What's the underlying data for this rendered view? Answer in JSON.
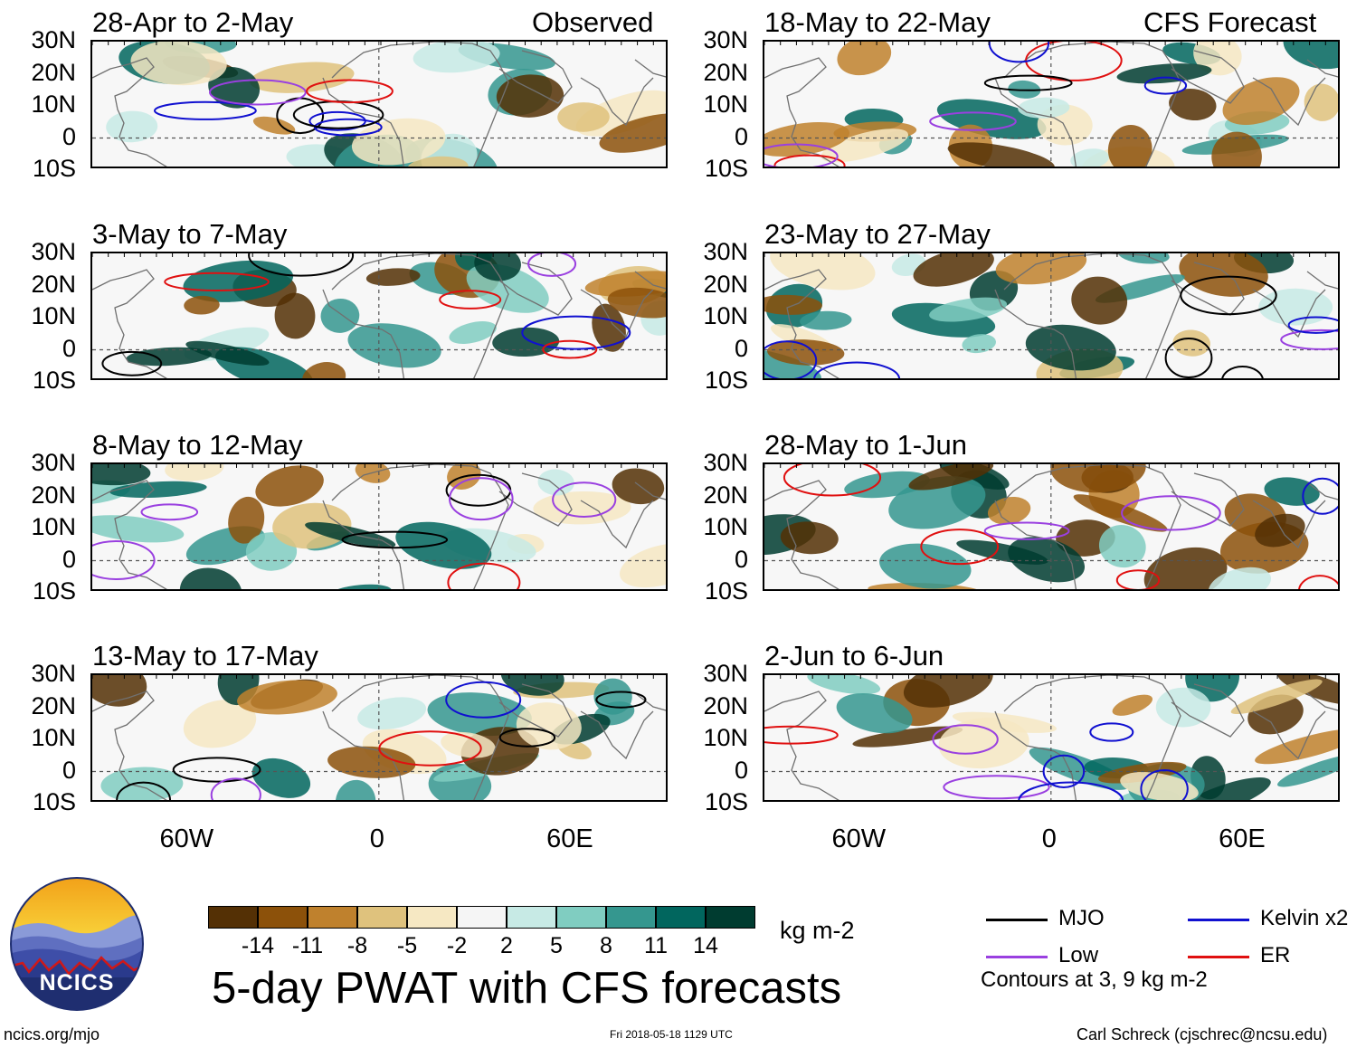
{
  "headers": {
    "observed": "Observed",
    "forecast": "CFS Forecast"
  },
  "lat_labels": [
    "30N",
    "20N",
    "10N",
    "0",
    "10S"
  ],
  "lon_labels": [
    "60W",
    "0",
    "60E"
  ],
  "panels": [
    {
      "title": "28-Apr to 2-May",
      "column": "observed"
    },
    {
      "title": "3-May to 7-May",
      "column": "observed"
    },
    {
      "title": "8-May to 12-May",
      "column": "observed"
    },
    {
      "title": "13-May to 17-May",
      "column": "observed"
    },
    {
      "title": "18-May to 22-May",
      "column": "forecast"
    },
    {
      "title": "23-May to 27-May",
      "column": "forecast"
    },
    {
      "title": "28-May to 1-Jun",
      "column": "forecast"
    },
    {
      "title": "2-Jun to 6-Jun",
      "column": "forecast"
    }
  ],
  "colorbar": {
    "colors": [
      "#543005",
      "#8c510a",
      "#bf812d",
      "#dfc27d",
      "#f6e8c3",
      "#f5f5f5",
      "#c7eae5",
      "#80cdc1",
      "#35978f",
      "#01665e",
      "#003c30"
    ],
    "ticks": [
      "-14",
      "-11",
      "-8",
      "-5",
      "-2",
      "2",
      "5",
      "8",
      "11",
      "14"
    ],
    "units": "kg m-2"
  },
  "legend": {
    "items": [
      {
        "label": "MJO",
        "color": "#000000"
      },
      {
        "label": "Kelvin x2",
        "color": "#1010d0"
      },
      {
        "label": "Low",
        "color": "#9a40e0"
      },
      {
        "label": "ER",
        "color": "#e01010"
      }
    ],
    "note": "Contours at 3, 9 kg m-2"
  },
  "logo": {
    "text": "NCICS"
  },
  "main_title": "5-day PWAT with CFS forecasts",
  "footer": {
    "url": "ncics.org/mjo",
    "timestamp": "Fri 2018-05-18 1129 UTC",
    "credit": "Carl Schreck (cjschrec@ncsu.edu)"
  }
}
